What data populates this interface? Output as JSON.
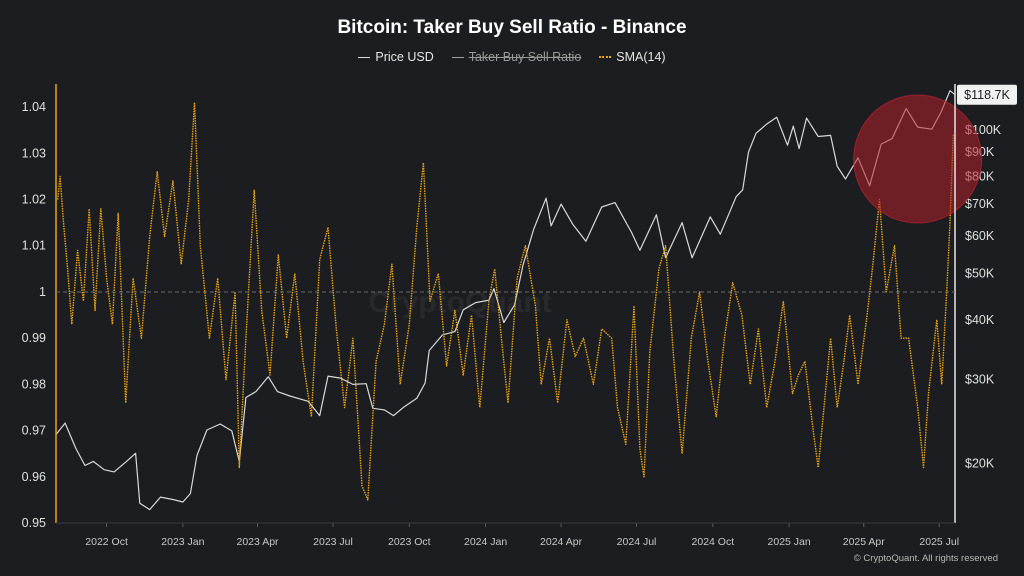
{
  "header": {
    "title": "Bitcoin: Taker Buy Sell Ratio - Binance",
    "legend": [
      {
        "label": "Price USD",
        "color": "#d9d9d9",
        "hidden": false
      },
      {
        "label": "Taker Buy Sell Ratio",
        "color": "#a0a0a0",
        "hidden": true
      },
      {
        "label": "SMA(14)",
        "color": "#e8a317",
        "hidden": false
      }
    ]
  },
  "watermark": "CryptoQuant",
  "copyright": "© CryptoQuant. All rights reserved",
  "chart_data": {
    "type": "line",
    "title": "Bitcoin: Taker Buy Sell Ratio - Binance",
    "x_ticks": [
      "2022 Oct",
      "2023 Jan",
      "2023 Apr",
      "2023 Jul",
      "2023 Oct",
      "2024 Jan",
      "2024 Apr",
      "2024 Jul",
      "2024 Oct",
      "2025 Jan",
      "2025 Apr",
      "2025 Jul"
    ],
    "x_range": [
      "2022-08-01",
      "2025-07-20"
    ],
    "left_axis": {
      "name": "Taker Buy Sell Ratio",
      "ylim": [
        0.95,
        1.045
      ],
      "ticks": [
        0.95,
        0.96,
        0.97,
        0.98,
        0.99,
        1,
        1.01,
        1.02,
        1.03,
        1.04
      ],
      "tick_labels": [
        "0.95",
        "0.96",
        "0.97",
        "0.98",
        "0.99",
        "1",
        "1.01",
        "1.02",
        "1.03",
        "1.04"
      ],
      "reference_line": 1
    },
    "right_axis": {
      "name": "Price USD",
      "scale": "log",
      "ylim": [
        15000,
        125000
      ],
      "ticks": [
        20000,
        30000,
        40000,
        50000,
        60000,
        70000,
        80000,
        90000,
        100000
      ],
      "tick_labels": [
        "$20K",
        "$30K",
        "$40K",
        "$50K",
        "$60K",
        "$70K",
        "$80K",
        "$90K",
        "$100K"
      ],
      "last_value": 118700,
      "last_value_label": "$118.7K"
    },
    "series": [
      {
        "name": "Price USD",
        "axis": "right",
        "color": "#d9d9d9",
        "points": [
          [
            "2022-08-01",
            23000
          ],
          [
            "2022-08-12",
            24300
          ],
          [
            "2022-08-25",
            21500
          ],
          [
            "2022-09-05",
            19800
          ],
          [
            "2022-09-15",
            20200
          ],
          [
            "2022-09-28",
            19400
          ],
          [
            "2022-10-10",
            19200
          ],
          [
            "2022-10-25",
            20200
          ],
          [
            "2022-11-05",
            21000
          ],
          [
            "2022-11-10",
            16500
          ],
          [
            "2022-11-22",
            16000
          ],
          [
            "2022-12-05",
            17000
          ],
          [
            "2022-12-20",
            16800
          ],
          [
            "2023-01-01",
            16600
          ],
          [
            "2023-01-10",
            17300
          ],
          [
            "2023-01-18",
            20800
          ],
          [
            "2023-01-30",
            23500
          ],
          [
            "2023-02-15",
            24200
          ],
          [
            "2023-03-01",
            23400
          ],
          [
            "2023-03-10",
            20200
          ],
          [
            "2023-03-18",
            27500
          ],
          [
            "2023-03-30",
            28300
          ],
          [
            "2023-04-14",
            30400
          ],
          [
            "2023-04-25",
            28300
          ],
          [
            "2023-05-10",
            27700
          ],
          [
            "2023-06-01",
            27000
          ],
          [
            "2023-06-15",
            25200
          ],
          [
            "2023-06-25",
            30500
          ],
          [
            "2023-07-10",
            30200
          ],
          [
            "2023-07-25",
            29300
          ],
          [
            "2023-08-10",
            29400
          ],
          [
            "2023-08-18",
            26100
          ],
          [
            "2023-09-01",
            25900
          ],
          [
            "2023-09-12",
            25200
          ],
          [
            "2023-09-25",
            26300
          ],
          [
            "2023-10-10",
            27400
          ],
          [
            "2023-10-20",
            29500
          ],
          [
            "2023-10-25",
            34500
          ],
          [
            "2023-11-10",
            37200
          ],
          [
            "2023-11-25",
            37800
          ],
          [
            "2023-12-05",
            42000
          ],
          [
            "2023-12-20",
            43500
          ],
          [
            "2024-01-05",
            44000
          ],
          [
            "2024-01-11",
            46500
          ],
          [
            "2024-01-23",
            39500
          ],
          [
            "2024-02-05",
            43000
          ],
          [
            "2024-02-15",
            52000
          ],
          [
            "2024-02-28",
            62000
          ],
          [
            "2024-03-14",
            72000
          ],
          [
            "2024-03-20",
            63000
          ],
          [
            "2024-04-01",
            70000
          ],
          [
            "2024-04-15",
            63500
          ],
          [
            "2024-05-01",
            58500
          ],
          [
            "2024-05-20",
            69000
          ],
          [
            "2024-06-05",
            70500
          ],
          [
            "2024-06-25",
            61000
          ],
          [
            "2024-07-05",
            56000
          ],
          [
            "2024-07-25",
            66500
          ],
          [
            "2024-08-05",
            54000
          ],
          [
            "2024-08-25",
            64000
          ],
          [
            "2024-09-06",
            54000
          ],
          [
            "2024-09-28",
            65800
          ],
          [
            "2024-10-10",
            60500
          ],
          [
            "2024-10-29",
            72500
          ],
          [
            "2024-11-06",
            75000
          ],
          [
            "2024-11-13",
            90000
          ],
          [
            "2024-11-22",
            98500
          ],
          [
            "2024-12-05",
            103000
          ],
          [
            "2024-12-17",
            106500
          ],
          [
            "2024-12-30",
            93000
          ],
          [
            "2025-01-06",
            102000
          ],
          [
            "2025-01-13",
            91500
          ],
          [
            "2025-01-22",
            106000
          ],
          [
            "2025-02-05",
            97000
          ],
          [
            "2025-02-20",
            97500
          ],
          [
            "2025-02-28",
            84000
          ],
          [
            "2025-03-10",
            79000
          ],
          [
            "2025-03-25",
            87500
          ],
          [
            "2025-04-08",
            76500
          ],
          [
            "2025-04-22",
            93500
          ],
          [
            "2025-05-05",
            96000
          ],
          [
            "2025-05-22",
            111000
          ],
          [
            "2025-06-05",
            101500
          ],
          [
            "2025-06-22",
            100500
          ],
          [
            "2025-07-03",
            109000
          ],
          [
            "2025-07-14",
            121000
          ],
          [
            "2025-07-20",
            118700
          ]
        ]
      },
      {
        "name": "SMA(14)",
        "axis": "left",
        "color": "#e8a317",
        "points": [
          [
            "2022-08-03",
            1.02
          ],
          [
            "2022-08-06",
            1.025
          ],
          [
            "2022-08-10",
            1.015
          ],
          [
            "2022-08-15",
            1.005
          ],
          [
            "2022-08-20",
            0.993
          ],
          [
            "2022-08-27",
            1.009
          ],
          [
            "2022-09-03",
            0.998
          ],
          [
            "2022-09-10",
            1.018
          ],
          [
            "2022-09-17",
            0.996
          ],
          [
            "2022-09-24",
            1.018
          ],
          [
            "2022-10-01",
            1.003
          ],
          [
            "2022-10-08",
            0.993
          ],
          [
            "2022-10-15",
            1.017
          ],
          [
            "2022-10-24",
            0.976
          ],
          [
            "2022-11-02",
            1.003
          ],
          [
            "2022-11-12",
            0.99
          ],
          [
            "2022-11-22",
            1.012
          ],
          [
            "2022-12-01",
            1.026
          ],
          [
            "2022-12-10",
            1.012
          ],
          [
            "2022-12-20",
            1.024
          ],
          [
            "2022-12-30",
            1.006
          ],
          [
            "2023-01-08",
            1.02
          ],
          [
            "2023-01-15",
            1.041
          ],
          [
            "2023-01-22",
            1.01
          ],
          [
            "2023-02-02",
            0.99
          ],
          [
            "2023-02-12",
            1.003
          ],
          [
            "2023-02-22",
            0.981
          ],
          [
            "2023-03-05",
            1.0
          ],
          [
            "2023-03-10",
            0.962
          ],
          [
            "2023-03-18",
            0.99
          ],
          [
            "2023-03-28",
            1.022
          ],
          [
            "2023-04-06",
            0.996
          ],
          [
            "2023-04-16",
            0.982
          ],
          [
            "2023-04-26",
            1.008
          ],
          [
            "2023-05-06",
            0.99
          ],
          [
            "2023-05-16",
            1.004
          ],
          [
            "2023-05-26",
            0.985
          ],
          [
            "2023-06-05",
            0.973
          ],
          [
            "2023-06-15",
            1.007
          ],
          [
            "2023-06-25",
            1.014
          ],
          [
            "2023-07-05",
            0.992
          ],
          [
            "2023-07-15",
            0.975
          ],
          [
            "2023-07-25",
            0.99
          ],
          [
            "2023-08-05",
            0.958
          ],
          [
            "2023-08-12",
            0.955
          ],
          [
            "2023-08-22",
            0.985
          ],
          [
            "2023-09-01",
            0.993
          ],
          [
            "2023-09-10",
            1.006
          ],
          [
            "2023-09-20",
            0.98
          ],
          [
            "2023-10-01",
            0.993
          ],
          [
            "2023-10-10",
            1.014
          ],
          [
            "2023-10-18",
            1.028
          ],
          [
            "2023-10-26",
            0.998
          ],
          [
            "2023-11-05",
            1.004
          ],
          [
            "2023-11-15",
            0.984
          ],
          [
            "2023-11-25",
            0.996
          ],
          [
            "2023-12-05",
            0.982
          ],
          [
            "2023-12-15",
            0.995
          ],
          [
            "2023-12-25",
            0.975
          ],
          [
            "2024-01-05",
            0.998
          ],
          [
            "2024-01-12",
            1.005
          ],
          [
            "2024-01-20",
            0.99
          ],
          [
            "2024-01-28",
            0.976
          ],
          [
            "2024-02-08",
            1.003
          ],
          [
            "2024-02-18",
            1.01
          ],
          [
            "2024-03-01",
            0.997
          ],
          [
            "2024-03-08",
            0.98
          ],
          [
            "2024-03-18",
            0.99
          ],
          [
            "2024-03-28",
            0.976
          ],
          [
            "2024-04-08",
            0.994
          ],
          [
            "2024-04-18",
            0.986
          ],
          [
            "2024-04-28",
            0.99
          ],
          [
            "2024-05-10",
            0.98
          ],
          [
            "2024-05-20",
            0.992
          ],
          [
            "2024-06-01",
            0.99
          ],
          [
            "2024-06-08",
            0.975
          ],
          [
            "2024-06-18",
            0.967
          ],
          [
            "2024-06-28",
            0.997
          ],
          [
            "2024-07-05",
            0.966
          ],
          [
            "2024-07-10",
            0.96
          ],
          [
            "2024-07-17",
            0.987
          ],
          [
            "2024-07-28",
            1.005
          ],
          [
            "2024-08-05",
            1.01
          ],
          [
            "2024-08-15",
            0.985
          ],
          [
            "2024-08-25",
            0.965
          ],
          [
            "2024-09-05",
            0.99
          ],
          [
            "2024-09-15",
            1.0
          ],
          [
            "2024-09-25",
            0.985
          ],
          [
            "2024-10-05",
            0.973
          ],
          [
            "2024-10-15",
            0.99
          ],
          [
            "2024-10-25",
            1.002
          ],
          [
            "2024-11-05",
            0.995
          ],
          [
            "2024-11-15",
            0.98
          ],
          [
            "2024-11-25",
            0.992
          ],
          [
            "2024-12-05",
            0.975
          ],
          [
            "2024-12-15",
            0.985
          ],
          [
            "2024-12-25",
            0.998
          ],
          [
            "2025-01-05",
            0.978
          ],
          [
            "2025-01-12",
            0.982
          ],
          [
            "2025-01-20",
            0.985
          ],
          [
            "2025-01-30",
            0.97
          ],
          [
            "2025-02-05",
            0.962
          ],
          [
            "2025-02-12",
            0.975
          ],
          [
            "2025-02-20",
            0.99
          ],
          [
            "2025-02-28",
            0.975
          ],
          [
            "2025-03-08",
            0.985
          ],
          [
            "2025-03-15",
            0.995
          ],
          [
            "2025-03-25",
            0.98
          ],
          [
            "2025-04-05",
            0.995
          ],
          [
            "2025-04-12",
            1.006
          ],
          [
            "2025-04-20",
            1.02
          ],
          [
            "2025-04-28",
            1.0
          ],
          [
            "2025-05-08",
            1.01
          ],
          [
            "2025-05-16",
            0.99
          ],
          [
            "2025-05-25",
            0.99
          ],
          [
            "2025-06-05",
            0.975
          ],
          [
            "2025-06-12",
            0.962
          ],
          [
            "2025-06-18",
            0.978
          ],
          [
            "2025-06-28",
            0.994
          ],
          [
            "2025-07-04",
            0.98
          ],
          [
            "2025-07-10",
            1.0
          ],
          [
            "2025-07-14",
            1.015
          ],
          [
            "2025-07-18",
            1.034
          ]
        ]
      }
    ],
    "annotations": [
      {
        "type": "highlight-circle",
        "color": "#b3202b",
        "center_date": "2025-06-05",
        "center_price": 87000
      }
    ]
  }
}
